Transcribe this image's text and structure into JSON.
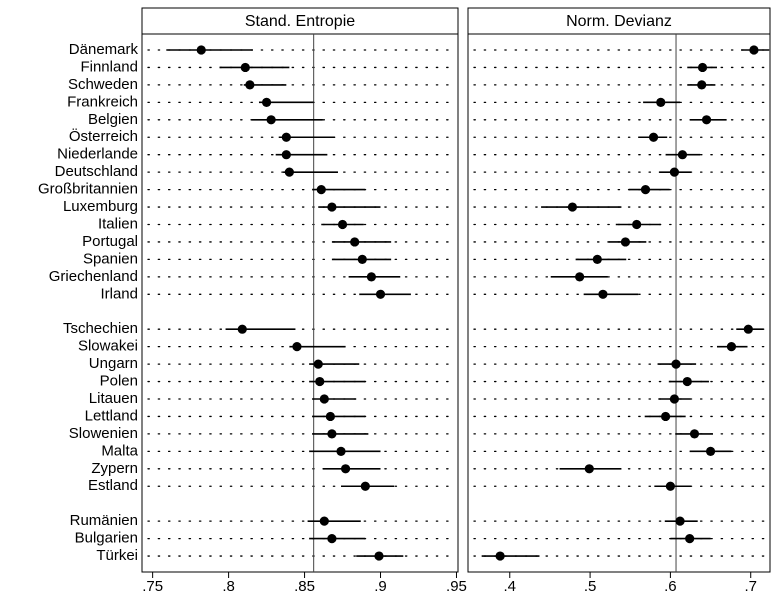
{
  "chart_data": {
    "type": "dot",
    "categories": [
      "Dänemark",
      "Finnland",
      "Schweden",
      "Frankreich",
      "Belgien",
      "Österreich",
      "Niederlande",
      "Deutschland",
      "Großbritannien",
      "Luxemburg",
      "Italien",
      "Portugal",
      "Spanien",
      "Griechenland",
      "Irland",
      null,
      "Tschechien",
      "Slowakei",
      "Ungarn",
      "Polen",
      "Litauen",
      "Lettland",
      "Slowenien",
      "Malta",
      "Zypern",
      "Estland",
      null,
      "Rumänien",
      "Bulgarien",
      "Türkei"
    ],
    "panels": [
      {
        "title": "Stand. Entropie",
        "xlim": [
          0.743,
          0.951
        ],
        "xticks": [
          {
            "value": 0.75,
            "label": ".75"
          },
          {
            "value": 0.8,
            "label": ".8"
          },
          {
            "value": 0.85,
            "label": ".85"
          },
          {
            "value": 0.9,
            "label": ".9"
          },
          {
            "value": 0.95,
            "label": ".95"
          }
        ],
        "reference": 0.856,
        "estimates": [
          0.782,
          0.811,
          0.814,
          0.825,
          0.828,
          0.838,
          0.838,
          0.84,
          0.861,
          0.868,
          0.875,
          0.883,
          0.888,
          0.894,
          0.9,
          null,
          0.809,
          0.845,
          0.859,
          0.86,
          0.863,
          0.867,
          0.868,
          0.874,
          0.877,
          0.89,
          null,
          0.863,
          0.868,
          0.899
        ],
        "lower": [
          0.759,
          0.794,
          0.81,
          0.82,
          0.815,
          0.833,
          0.831,
          0.836,
          0.855,
          0.859,
          0.861,
          0.868,
          0.868,
          0.879,
          0.886,
          null,
          0.798,
          0.84,
          0.853,
          0.853,
          0.855,
          0.855,
          0.855,
          0.853,
          0.862,
          0.874,
          null,
          0.852,
          0.853,
          0.884
        ],
        "upper": [
          0.816,
          0.84,
          0.838,
          0.856,
          0.862,
          0.87,
          0.865,
          0.872,
          0.89,
          0.9,
          0.889,
          0.907,
          0.907,
          0.913,
          0.92,
          null,
          0.844,
          0.877,
          0.886,
          0.89,
          0.884,
          0.89,
          0.892,
          0.9,
          0.9,
          0.909,
          null,
          0.887,
          0.89,
          0.915
        ]
      },
      {
        "title": "Norm. Devianz",
        "xlim": [
          0.348,
          0.724
        ],
        "xticks": [
          {
            "value": 0.4,
            "label": ".4"
          },
          {
            "value": 0.5,
            "label": ".5"
          },
          {
            "value": 0.6,
            "label": ".6"
          },
          {
            "value": 0.7,
            "label": ".7"
          }
        ],
        "reference": 0.607,
        "estimates": [
          0.704,
          0.64,
          0.639,
          0.588,
          0.645,
          0.579,
          0.615,
          0.605,
          0.569,
          0.478,
          0.558,
          0.544,
          0.509,
          0.487,
          0.516,
          null,
          0.697,
          0.676,
          0.607,
          0.621,
          0.605,
          0.594,
          0.63,
          0.65,
          0.499,
          0.6,
          null,
          0.612,
          0.624,
          0.388
        ],
        "lower": [
          0.688,
          0.621,
          0.621,
          0.566,
          0.624,
          0.56,
          0.594,
          0.586,
          0.548,
          0.439,
          0.532,
          0.523,
          0.482,
          0.451,
          0.492,
          null,
          0.682,
          0.658,
          0.584,
          0.598,
          0.585,
          0.568,
          0.606,
          0.624,
          0.462,
          0.58,
          null,
          0.593,
          0.6,
          0.365
        ],
        "upper": [
          0.723,
          0.658,
          0.656,
          0.612,
          0.67,
          0.596,
          0.637,
          0.626,
          0.599,
          0.539,
          0.588,
          0.57,
          0.545,
          0.522,
          0.56,
          null,
          0.716,
          0.696,
          0.632,
          0.648,
          0.625,
          0.619,
          0.653,
          0.676,
          0.539,
          0.626,
          null,
          0.634,
          0.65,
          0.437
        ]
      }
    ]
  }
}
